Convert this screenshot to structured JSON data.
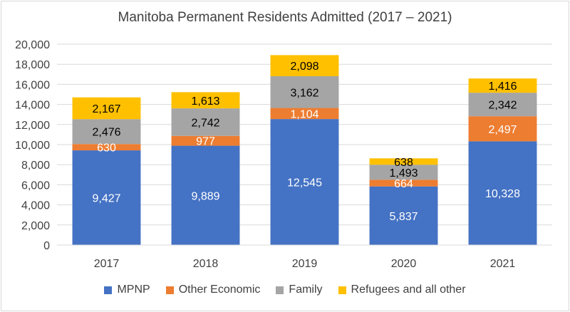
{
  "chart_data": {
    "type": "bar",
    "stacked": true,
    "title": "Manitoba Permanent Residents Admitted (2017 – 2021)",
    "categories": [
      "2017",
      "2018",
      "2019",
      "2020",
      "2021"
    ],
    "series": [
      {
        "name": "MPNP",
        "color": "#4472c4",
        "label_color": "#ffffff",
        "values": [
          9427,
          9889,
          12545,
          5837,
          10328
        ],
        "labels": [
          "9,427",
          "9,889",
          "12,545",
          "5,837",
          "10,328"
        ]
      },
      {
        "name": "Other Economic",
        "color": "#ed7d31",
        "label_color": "#ffffff",
        "values": [
          630,
          977,
          1104,
          664,
          2497
        ],
        "labels": [
          "630",
          "977",
          "1,104",
          "664",
          "2,497"
        ]
      },
      {
        "name": "Family",
        "color": "#a5a5a5",
        "label_color": "#000000",
        "values": [
          2476,
          2742,
          3162,
          1493,
          2342
        ],
        "labels": [
          "2,476",
          "2,742",
          "3,162",
          "1,493",
          "2,342"
        ]
      },
      {
        "name": "Refugees and all other",
        "color": "#ffc000",
        "label_color": "#000000",
        "values": [
          2167,
          1613,
          2098,
          638,
          1416
        ],
        "labels": [
          "2,167",
          "1,613",
          "2,098",
          "638",
          "1,416"
        ]
      }
    ],
    "ylim": [
      0,
      20000
    ],
    "yticks": [
      0,
      2000,
      4000,
      6000,
      8000,
      10000,
      12000,
      14000,
      16000,
      18000,
      20000
    ],
    "ytick_labels": [
      "0",
      "2,000",
      "4,000",
      "6,000",
      "8,000",
      "10,000",
      "12,000",
      "14,000",
      "16,000",
      "18,000",
      "20,000"
    ],
    "grid": true,
    "legend_position": "bottom"
  }
}
